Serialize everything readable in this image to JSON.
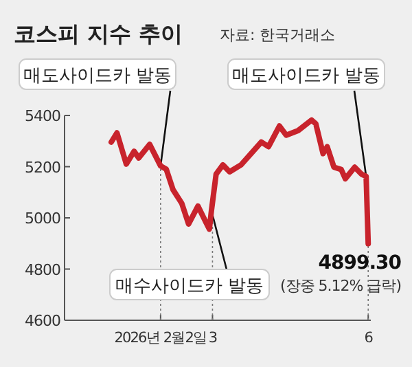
{
  "chart_data": {
    "type": "line",
    "title": "코스피 지수 추이",
    "x": [
      1.05,
      1.16,
      1.34,
      1.49,
      1.58,
      1.79,
      2,
      2.11,
      2.24,
      2.41,
      2.54,
      2.72,
      2.89,
      2.94,
      2.98,
      3.07,
      3.2,
      3.33,
      3.55,
      3.94,
      4.08,
      4.29,
      4.42,
      4.65,
      4.91,
      4.99,
      5.13,
      5.21,
      5.34,
      5.48,
      5.56,
      5.74,
      5.87,
      5.96,
      6.0
    ],
    "series": [
      {
        "color": "#c8232c",
        "values": [
          5296,
          5332,
          5210,
          5260,
          5234,
          5287,
          5203,
          5190,
          5110,
          5056,
          4976,
          5046,
          4976,
          4956,
          5028,
          5171,
          5207,
          5180,
          5207,
          5296,
          5278,
          5359,
          5323,
          5341,
          5382,
          5368,
          5251,
          5278,
          5198,
          5189,
          5153,
          5198,
          5171,
          5162,
          4899.3
        ],
        "value_labels": [
          null,
          null,
          null,
          null,
          null,
          null,
          null,
          null,
          null,
          null,
          null,
          null,
          null,
          null,
          null,
          null,
          null,
          null,
          null,
          null,
          null,
          null,
          null,
          null,
          null,
          null,
          null,
          null,
          null,
          null,
          null,
          null,
          null,
          null,
          "4899.30"
        ]
      }
    ],
    "xlim": [
      0.15,
      6.05
    ],
    "ylim": [
      4600,
      5400
    ],
    "xticks": [
      {
        "value": 2,
        "label": "2026년 2월2일"
      },
      3,
      6
    ],
    "yticks": [
      4600,
      4800,
      5000,
      5200,
      5400
    ],
    "ref_lines": [
      {
        "axis": "x",
        "value": 2,
        "line_style": "dotted"
      },
      {
        "axis": "x",
        "value": 3,
        "line_style": "dotted"
      },
      {
        "axis": "x",
        "value": 6,
        "line_style": "dotted"
      }
    ],
    "annotations": [
      {
        "text": "매도사이드카 발동",
        "x": 2,
        "y": 5203
      },
      {
        "text": "매도사이드카 발동",
        "x": 5.96,
        "y": 5162
      },
      {
        "text": "매수사이드카 발동",
        "x": 2.98,
        "y": 5028
      },
      {
        "text": "(장중 5.12% 급락)",
        "x": 6.0,
        "y": 4899.3
      },
      "자료: 한국거래소"
    ],
    "grid": false
  }
}
